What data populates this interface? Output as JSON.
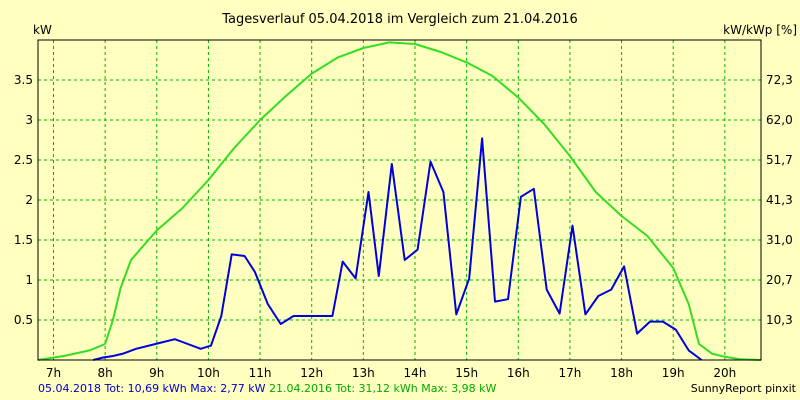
{
  "chart_data": {
    "type": "line",
    "title": "Tagesverlauf 05.04.2018 im Vergleich zum 21.04.2016",
    "ylabel_left": "kW",
    "ylabel_right": "kW/kWp [%]",
    "ylim": [
      0,
      4.0
    ],
    "xlim_hours": [
      6.7,
      20.7
    ],
    "x_tick_labels": [
      "7h",
      "8h",
      "9h",
      "10h",
      "11h",
      "12h",
      "13h",
      "14h",
      "15h",
      "16h",
      "17h",
      "18h",
      "19h",
      "20h"
    ],
    "y_left_ticks": [
      "0.5",
      "1",
      "1.5",
      "2",
      "2.5",
      "3",
      "3.5"
    ],
    "y_right_ticks": [
      "10,3",
      "20,7",
      "31,0",
      "41,3",
      "51,7",
      "62,0",
      "72,3"
    ],
    "grid": true,
    "series": [
      {
        "name": "05.04.2018",
        "color": "#0000dd",
        "x": [
          7.77,
          7.95,
          8.15,
          8.35,
          8.6,
          8.85,
          9.1,
          9.35,
          9.6,
          9.85,
          10.05,
          10.25,
          10.45,
          10.7,
          10.9,
          11.15,
          11.4,
          11.65,
          11.9,
          12.15,
          12.4,
          12.6,
          12.85,
          13.1,
          13.3,
          13.55,
          13.8,
          14.05,
          14.3,
          14.55,
          14.8,
          15.05,
          15.3,
          15.55,
          15.8,
          16.05,
          16.3,
          16.55,
          16.8,
          17.05,
          17.3,
          17.55,
          17.8,
          18.05,
          18.3,
          18.55,
          18.8,
          19.05,
          19.3,
          19.55
        ],
        "y": [
          0,
          0.03,
          0.05,
          0.08,
          0.14,
          0.18,
          0.22,
          0.26,
          0.2,
          0.14,
          0.18,
          0.55,
          1.32,
          1.3,
          1.1,
          0.7,
          0.45,
          0.55,
          0.55,
          0.55,
          0.55,
          1.23,
          1.02,
          2.1,
          1.05,
          2.45,
          1.25,
          1.38,
          2.48,
          2.1,
          0.57,
          1.02,
          2.77,
          0.73,
          0.76,
          2.04,
          2.14,
          0.88,
          0.58,
          1.68,
          0.57,
          0.8,
          0.88,
          1.17,
          0.33,
          0.48,
          0.48,
          0.38,
          0.12,
          0
        ]
      },
      {
        "name": "21.04.2016",
        "color": "#33dd22",
        "x": [
          6.7,
          7.2,
          7.7,
          8.0,
          8.15,
          8.3,
          8.5,
          9.0,
          9.5,
          10.0,
          10.5,
          11.0,
          11.5,
          12.0,
          12.5,
          13.0,
          13.5,
          14.0,
          14.5,
          15.0,
          15.5,
          16.0,
          16.5,
          17.0,
          17.5,
          18.0,
          18.5,
          19.0,
          19.3,
          19.5,
          19.75,
          20.0,
          20.3,
          20.7
        ],
        "y": [
          0,
          0.05,
          0.12,
          0.2,
          0.5,
          0.9,
          1.25,
          1.62,
          1.9,
          2.25,
          2.65,
          3.0,
          3.3,
          3.58,
          3.78,
          3.9,
          3.97,
          3.95,
          3.85,
          3.72,
          3.55,
          3.28,
          2.95,
          2.55,
          2.1,
          1.8,
          1.55,
          1.15,
          0.7,
          0.2,
          0.08,
          0.04,
          0.01,
          0
        ]
      }
    ]
  },
  "footer": {
    "legend_series1": "05.04.2018 Tot: 10,69 kWh Max: 2,77 kW",
    "legend_series2": "21.04.2016 Tot: 31,12 kWh Max: 3,98 kW",
    "brand": "SunnyReport pinxit"
  }
}
